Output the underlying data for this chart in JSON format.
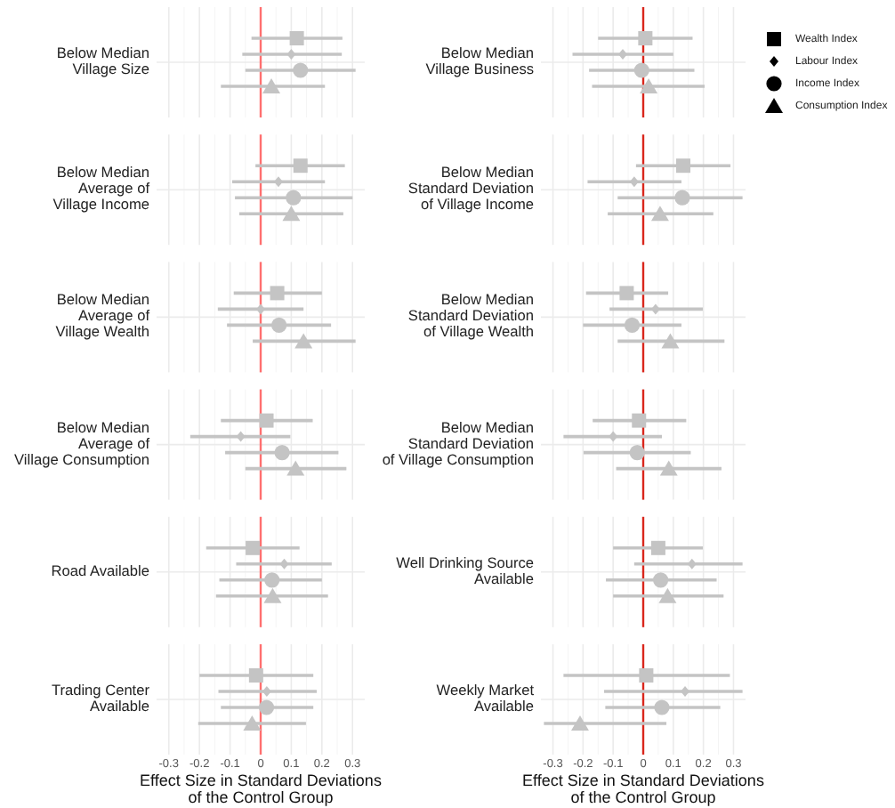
{
  "chart_data": [
    {
      "type": "scatter",
      "orientation": "horizontal",
      "categories": [
        "Below Median\nVillage Size"
      ],
      "xlim": [
        -0.34,
        0.34
      ],
      "xticks": [
        -0.3,
        {
          "value": -0.25,
          "label": null
        },
        -0.2,
        {
          "value": -0.15,
          "label": null
        },
        -0.1,
        {
          "value": -0.05,
          "label": null
        },
        0,
        {
          "value": 0.05,
          "label": null
        },
        0.1,
        {
          "value": 0.15,
          "label": null
        },
        0.2,
        {
          "value": 0.25,
          "label": null
        },
        0.3
      ],
      "tick_labels": "y",
      "grid": true,
      "ref_lines": [
        {
          "axis": "x",
          "value": 0,
          "color": "#ff6f6f"
        }
      ],
      "series": [
        {
          "color": "#c4c4c4",
          "marker": "square",
          "values": [
            0.118
          ],
          "errors": [
            [
              -0.03,
              0.267
            ]
          ]
        },
        {
          "color": "#c4c4c4",
          "marker": "diamond",
          "values": [
            0.1
          ],
          "errors": [
            [
              -0.06,
              0.265
            ]
          ]
        },
        {
          "color": "#c4c4c4",
          "marker": "circle",
          "values": [
            0.13
          ],
          "errors": [
            [
              -0.05,
              0.31
            ]
          ]
        },
        {
          "color": "#c4c4c4",
          "marker": "triangle",
          "values": [
            0.035
          ],
          "errors": [
            [
              -0.13,
              0.21
            ]
          ]
        }
      ]
    },
    {
      "type": "scatter",
      "orientation": "horizontal",
      "categories": [
        "Below Median\nVillage Business"
      ],
      "xlim": [
        -0.34,
        0.34
      ],
      "xticks": [
        -0.3,
        {
          "value": -0.25,
          "label": null
        },
        -0.2,
        {
          "value": -0.15,
          "label": null
        },
        -0.1,
        {
          "value": -0.05,
          "label": null
        },
        0,
        {
          "value": 0.05,
          "label": null
        },
        0.1,
        {
          "value": 0.15,
          "label": null
        },
        0.2,
        {
          "value": 0.25,
          "label": null
        },
        0.3
      ],
      "tick_labels": "y",
      "grid": true,
      "legend": "right",
      "ref_lines": [
        {
          "axis": "x",
          "value": 0,
          "color": "#d9261c"
        }
      ],
      "series": [
        {
          "name": "Wealth Index",
          "color": "#c4c4c4",
          "marker": "square",
          "values": [
            0.007
          ],
          "errors": [
            [
              -0.15,
              0.164
            ]
          ]
        },
        {
          "name": "Labour Index",
          "color": "#c4c4c4",
          "marker": "diamond",
          "values": [
            -0.068
          ],
          "errors": [
            [
              -0.235,
              0.1
            ]
          ]
        },
        {
          "name": "Income Index",
          "color": "#c4c4c4",
          "marker": "circle",
          "values": [
            -0.005
          ],
          "errors": [
            [
              -0.18,
              0.17
            ]
          ]
        },
        {
          "name": "Consumption Index",
          "color": "#c4c4c4",
          "marker": "triangle",
          "values": [
            0.018
          ],
          "errors": [
            [
              -0.17,
              0.204
            ]
          ]
        }
      ]
    },
    {
      "type": "scatter",
      "orientation": "horizontal",
      "categories": [
        "Below Median\nAverage of\nVillage Income"
      ],
      "xlim": [
        -0.34,
        0.34
      ],
      "xticks": [
        -0.3,
        {
          "value": -0.25,
          "label": null
        },
        -0.2,
        {
          "value": -0.15,
          "label": null
        },
        -0.1,
        {
          "value": -0.05,
          "label": null
        },
        0,
        {
          "value": 0.05,
          "label": null
        },
        0.1,
        {
          "value": 0.15,
          "label": null
        },
        0.2,
        {
          "value": 0.25,
          "label": null
        },
        0.3
      ],
      "tick_labels": "y",
      "grid": true,
      "ref_lines": [
        {
          "axis": "x",
          "value": 0,
          "color": "#ff6f6f"
        }
      ],
      "series": [
        {
          "color": "#c4c4c4",
          "marker": "square",
          "values": [
            0.13
          ],
          "errors": [
            [
              -0.017,
              0.275
            ]
          ]
        },
        {
          "color": "#c4c4c4",
          "marker": "diamond",
          "values": [
            0.058
          ],
          "errors": [
            [
              -0.093,
              0.21
            ]
          ]
        },
        {
          "color": "#c4c4c4",
          "marker": "circle",
          "values": [
            0.107
          ],
          "errors": [
            [
              -0.084,
              0.3
            ]
          ]
        },
        {
          "color": "#c4c4c4",
          "marker": "triangle",
          "values": [
            0.1
          ],
          "errors": [
            [
              -0.07,
              0.27
            ]
          ]
        }
      ]
    },
    {
      "type": "scatter",
      "orientation": "horizontal",
      "categories": [
        "Below Median\nStandard Deviation\nof Village Income"
      ],
      "xlim": [
        -0.34,
        0.34
      ],
      "xticks": [
        -0.3,
        {
          "value": -0.25,
          "label": null
        },
        -0.2,
        {
          "value": -0.15,
          "label": null
        },
        -0.1,
        {
          "value": -0.05,
          "label": null
        },
        0,
        {
          "value": 0.05,
          "label": null
        },
        0.1,
        {
          "value": 0.15,
          "label": null
        },
        0.2,
        {
          "value": 0.25,
          "label": null
        },
        0.3
      ],
      "tick_labels": "y",
      "grid": true,
      "ref_lines": [
        {
          "axis": "x",
          "value": 0,
          "color": "#d9261c"
        }
      ],
      "series": [
        {
          "color": "#c4c4c4",
          "marker": "square",
          "values": [
            0.133
          ],
          "errors": [
            [
              -0.024,
              0.29
            ]
          ]
        },
        {
          "color": "#c4c4c4",
          "marker": "diamond",
          "values": [
            -0.03
          ],
          "errors": [
            [
              -0.185,
              0.127
            ]
          ]
        },
        {
          "color": "#c4c4c4",
          "marker": "circle",
          "values": [
            0.13
          ],
          "errors": [
            [
              -0.085,
              0.33
            ]
          ]
        },
        {
          "color": "#c4c4c4",
          "marker": "triangle",
          "values": [
            0.056
          ],
          "errors": [
            [
              -0.118,
              0.233
            ]
          ]
        }
      ]
    },
    {
      "type": "scatter",
      "orientation": "horizontal",
      "categories": [
        "Below Median\nAverage of\nVillage Wealth"
      ],
      "xlim": [
        -0.34,
        0.34
      ],
      "xticks": [
        -0.3,
        {
          "value": -0.25,
          "label": null
        },
        -0.2,
        {
          "value": -0.15,
          "label": null
        },
        -0.1,
        {
          "value": -0.05,
          "label": null
        },
        0,
        {
          "value": 0.05,
          "label": null
        },
        0.1,
        {
          "value": 0.15,
          "label": null
        },
        0.2,
        {
          "value": 0.25,
          "label": null
        },
        0.3
      ],
      "tick_labels": "y",
      "grid": true,
      "ref_lines": [
        {
          "axis": "x",
          "value": 0,
          "color": "#ff6f6f"
        }
      ],
      "series": [
        {
          "color": "#c4c4c4",
          "marker": "square",
          "values": [
            0.054
          ],
          "errors": [
            [
              -0.088,
              0.2
            ]
          ]
        },
        {
          "color": "#c4c4c4",
          "marker": "diamond",
          "values": [
            0.0
          ],
          "errors": [
            [
              -0.14,
              0.14
            ]
          ]
        },
        {
          "color": "#c4c4c4",
          "marker": "circle",
          "values": [
            0.06
          ],
          "errors": [
            [
              -0.11,
              0.23
            ]
          ]
        },
        {
          "color": "#c4c4c4",
          "marker": "triangle",
          "values": [
            0.14
          ],
          "errors": [
            [
              -0.026,
              0.31
            ]
          ]
        }
      ]
    },
    {
      "type": "scatter",
      "orientation": "horizontal",
      "categories": [
        "Below Median\nStandard Deviation\nof Village Wealth"
      ],
      "xlim": [
        -0.34,
        0.34
      ],
      "xticks": [
        -0.3,
        {
          "value": -0.25,
          "label": null
        },
        -0.2,
        {
          "value": -0.15,
          "label": null
        },
        -0.1,
        {
          "value": -0.05,
          "label": null
        },
        0,
        {
          "value": 0.05,
          "label": null
        },
        0.1,
        {
          "value": 0.15,
          "label": null
        },
        0.2,
        {
          "value": 0.25,
          "label": null
        },
        0.3
      ],
      "tick_labels": "y",
      "grid": true,
      "ref_lines": [
        {
          "axis": "x",
          "value": 0,
          "color": "#d9261c"
        }
      ],
      "series": [
        {
          "color": "#c4c4c4",
          "marker": "square",
          "values": [
            -0.055
          ],
          "errors": [
            [
              -0.19,
              0.083
            ]
          ]
        },
        {
          "color": "#c4c4c4",
          "marker": "diamond",
          "values": [
            0.041
          ],
          "errors": [
            [
              -0.112,
              0.198
            ]
          ]
        },
        {
          "color": "#c4c4c4",
          "marker": "circle",
          "values": [
            -0.037
          ],
          "errors": [
            [
              -0.2,
              0.127
            ]
          ]
        },
        {
          "color": "#c4c4c4",
          "marker": "triangle",
          "values": [
            0.09
          ],
          "errors": [
            [
              -0.085,
              0.27
            ]
          ]
        }
      ]
    },
    {
      "type": "scatter",
      "orientation": "horizontal",
      "categories": [
        "Below Median\nAverage of\nVillage Consumption"
      ],
      "xlim": [
        -0.34,
        0.34
      ],
      "xticks": [
        -0.3,
        {
          "value": -0.25,
          "label": null
        },
        -0.2,
        {
          "value": -0.15,
          "label": null
        },
        -0.1,
        {
          "value": -0.05,
          "label": null
        },
        0,
        {
          "value": 0.05,
          "label": null
        },
        0.1,
        {
          "value": 0.15,
          "label": null
        },
        0.2,
        {
          "value": 0.25,
          "label": null
        },
        0.3
      ],
      "tick_labels": "y",
      "grid": true,
      "ref_lines": [
        {
          "axis": "x",
          "value": 0,
          "color": "#ff6f6f"
        }
      ],
      "series": [
        {
          "color": "#c4c4c4",
          "marker": "square",
          "values": [
            0.019
          ],
          "errors": [
            [
              -0.13,
              0.17
            ]
          ]
        },
        {
          "color": "#c4c4c4",
          "marker": "diamond",
          "values": [
            -0.065
          ],
          "errors": [
            [
              -0.23,
              0.097
            ]
          ]
        },
        {
          "color": "#c4c4c4",
          "marker": "circle",
          "values": [
            0.07
          ],
          "errors": [
            [
              -0.116,
              0.254
            ]
          ]
        },
        {
          "color": "#c4c4c4",
          "marker": "triangle",
          "values": [
            0.114
          ],
          "errors": [
            [
              -0.05,
              0.28
            ]
          ]
        }
      ]
    },
    {
      "type": "scatter",
      "orientation": "horizontal",
      "categories": [
        "Below Median\nStandard Deviation\nof Village Consumption"
      ],
      "xlim": [
        -0.34,
        0.34
      ],
      "xticks": [
        -0.3,
        {
          "value": -0.25,
          "label": null
        },
        -0.2,
        {
          "value": -0.15,
          "label": null
        },
        -0.1,
        {
          "value": -0.05,
          "label": null
        },
        0,
        {
          "value": 0.05,
          "label": null
        },
        0.1,
        {
          "value": 0.15,
          "label": null
        },
        0.2,
        {
          "value": 0.25,
          "label": null
        },
        0.3
      ],
      "tick_labels": "y",
      "grid": true,
      "ref_lines": [
        {
          "axis": "x",
          "value": 0,
          "color": "#d9261c"
        }
      ],
      "series": [
        {
          "color": "#c4c4c4",
          "marker": "square",
          "values": [
            -0.014
          ],
          "errors": [
            [
              -0.168,
              0.143
            ]
          ]
        },
        {
          "color": "#c4c4c4",
          "marker": "diamond",
          "values": [
            -0.1
          ],
          "errors": [
            [
              -0.265,
              0.062
            ]
          ]
        },
        {
          "color": "#c4c4c4",
          "marker": "circle",
          "values": [
            -0.02
          ],
          "errors": [
            [
              -0.198,
              0.158
            ]
          ]
        },
        {
          "color": "#c4c4c4",
          "marker": "triangle",
          "values": [
            0.085
          ],
          "errors": [
            [
              -0.09,
              0.26
            ]
          ]
        }
      ]
    },
    {
      "type": "scatter",
      "orientation": "horizontal",
      "categories": [
        "Road Available"
      ],
      "xlim": [
        -0.34,
        0.34
      ],
      "xticks": [
        -0.3,
        {
          "value": -0.25,
          "label": null
        },
        -0.2,
        {
          "value": -0.15,
          "label": null
        },
        -0.1,
        {
          "value": -0.05,
          "label": null
        },
        0,
        {
          "value": 0.05,
          "label": null
        },
        0.1,
        {
          "value": 0.15,
          "label": null
        },
        0.2,
        {
          "value": 0.25,
          "label": null
        },
        0.3
      ],
      "tick_labels": "y",
      "grid": true,
      "ref_lines": [
        {
          "axis": "x",
          "value": 0,
          "color": "#ff6f6f"
        }
      ],
      "series": [
        {
          "color": "#c4c4c4",
          "marker": "square",
          "values": [
            -0.026
          ],
          "errors": [
            [
              -0.178,
              0.127
            ]
          ]
        },
        {
          "color": "#c4c4c4",
          "marker": "diamond",
          "values": [
            0.077
          ],
          "errors": [
            [
              -0.08,
              0.232
            ]
          ]
        },
        {
          "color": "#c4c4c4",
          "marker": "circle",
          "values": [
            0.037
          ],
          "errors": [
            [
              -0.135,
              0.2
            ]
          ]
        },
        {
          "color": "#c4c4c4",
          "marker": "triangle",
          "values": [
            0.039
          ],
          "errors": [
            [
              -0.146,
              0.22
            ]
          ]
        }
      ]
    },
    {
      "type": "scatter",
      "orientation": "horizontal",
      "categories": [
        "Well Drinking Source\nAvailable"
      ],
      "xlim": [
        -0.34,
        0.34
      ],
      "xticks": [
        -0.3,
        {
          "value": -0.25,
          "label": null
        },
        -0.2,
        {
          "value": -0.15,
          "label": null
        },
        -0.1,
        {
          "value": -0.05,
          "label": null
        },
        0,
        {
          "value": 0.05,
          "label": null
        },
        0.1,
        {
          "value": 0.15,
          "label": null
        },
        0.2,
        {
          "value": 0.25,
          "label": null
        },
        0.3
      ],
      "tick_labels": "y",
      "grid": true,
      "ref_lines": [
        {
          "axis": "x",
          "value": 0,
          "color": "#d9261c"
        }
      ],
      "series": [
        {
          "color": "#c4c4c4",
          "marker": "square",
          "values": [
            0.05
          ],
          "errors": [
            [
              -0.1,
              0.198
            ]
          ]
        },
        {
          "color": "#c4c4c4",
          "marker": "diamond",
          "values": [
            0.162
          ],
          "errors": [
            [
              -0.03,
              0.33
            ]
          ]
        },
        {
          "color": "#c4c4c4",
          "marker": "circle",
          "values": [
            0.058
          ],
          "errors": [
            [
              -0.124,
              0.244
            ]
          ]
        },
        {
          "color": "#c4c4c4",
          "marker": "triangle",
          "values": [
            0.081
          ],
          "errors": [
            [
              -0.1,
              0.267
            ]
          ]
        }
      ]
    },
    {
      "type": "scatter",
      "orientation": "horizontal",
      "categories": [
        "Trading Center\nAvailable"
      ],
      "xlim": [
        -0.34,
        0.34
      ],
      "xticks": [
        -0.3,
        {
          "value": -0.25,
          "label": null
        },
        -0.2,
        {
          "value": -0.15,
          "label": null
        },
        -0.1,
        {
          "value": -0.05,
          "label": null
        },
        0,
        {
          "value": 0.05,
          "label": null
        },
        0.1,
        {
          "value": 0.15,
          "label": null
        },
        0.2,
        {
          "value": 0.25,
          "label": null
        },
        0.3
      ],
      "grid": true,
      "xlabel": "Effect Size in Standard Deviations\nof the Control Group",
      "ref_lines": [
        {
          "axis": "x",
          "value": 0,
          "color": "#ff6f6f"
        }
      ],
      "series": [
        {
          "color": "#c4c4c4",
          "marker": "square",
          "values": [
            -0.015
          ],
          "errors": [
            [
              -0.2,
              0.172
            ]
          ]
        },
        {
          "color": "#c4c4c4",
          "marker": "diamond",
          "values": [
            0.02
          ],
          "errors": [
            [
              -0.138,
              0.183
            ]
          ]
        },
        {
          "color": "#c4c4c4",
          "marker": "circle",
          "values": [
            0.019
          ],
          "errors": [
            [
              -0.13,
              0.172
            ]
          ]
        },
        {
          "color": "#c4c4c4",
          "marker": "triangle",
          "values": [
            -0.028
          ],
          "errors": [
            [
              -0.204,
              0.148
            ]
          ]
        }
      ]
    },
    {
      "type": "scatter",
      "orientation": "horizontal",
      "categories": [
        "Weekly Market\nAvailable"
      ],
      "xlim": [
        -0.34,
        0.34
      ],
      "xticks": [
        -0.3,
        {
          "value": -0.25,
          "label": null
        },
        -0.2,
        {
          "value": -0.15,
          "label": null
        },
        -0.1,
        {
          "value": -0.05,
          "label": null
        },
        0,
        {
          "value": 0.05,
          "label": null
        },
        0.1,
        {
          "value": 0.15,
          "label": null
        },
        0.2,
        {
          "value": 0.25,
          "label": null
        },
        0.3
      ],
      "grid": true,
      "xlabel": "Effect Size in Standard Deviations\nof the Control Group",
      "ref_lines": [
        {
          "axis": "x",
          "value": 0,
          "color": "#d9261c"
        }
      ],
      "series": [
        {
          "color": "#c4c4c4",
          "marker": "square",
          "values": [
            0.01
          ],
          "errors": [
            [
              -0.265,
              0.288
            ]
          ]
        },
        {
          "color": "#c4c4c4",
          "marker": "diamond",
          "values": [
            0.139
          ],
          "errors": [
            [
              -0.13,
              0.33
            ]
          ]
        },
        {
          "color": "#c4c4c4",
          "marker": "circle",
          "values": [
            0.062
          ],
          "errors": [
            [
              -0.126,
              0.256
            ]
          ]
        },
        {
          "color": "#c4c4c4",
          "marker": "triangle",
          "values": [
            -0.21
          ],
          "errors": [
            [
              -0.33,
              0.077
            ]
          ]
        }
      ]
    }
  ]
}
